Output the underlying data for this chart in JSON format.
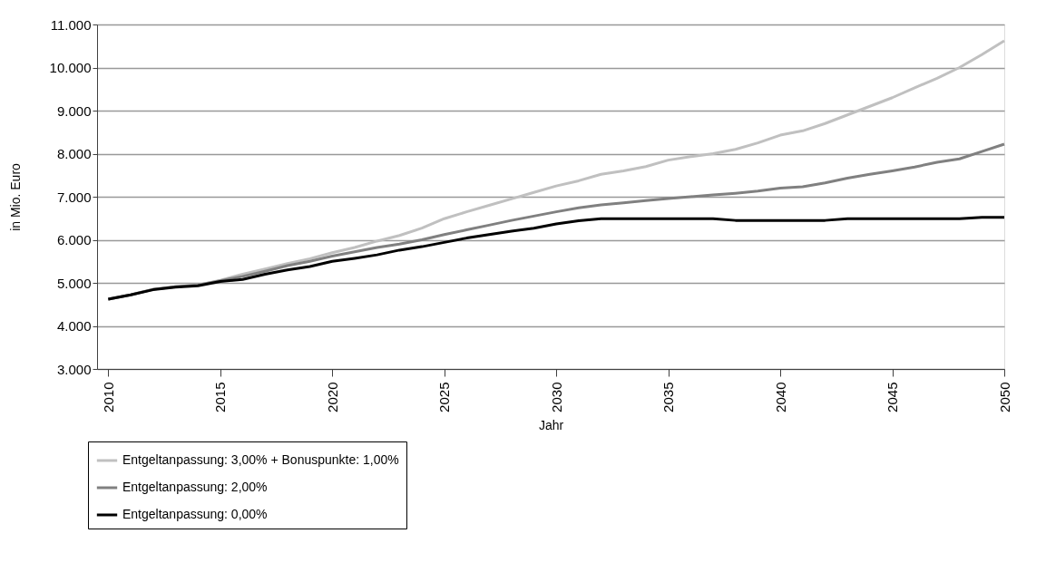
{
  "chart_data": {
    "type": "line",
    "xlabel": "Jahr",
    "ylabel": "in Mio. Euro",
    "x": [
      2010,
      2011,
      2012,
      2013,
      2014,
      2015,
      2016,
      2017,
      2018,
      2019,
      2020,
      2021,
      2022,
      2023,
      2024,
      2025,
      2026,
      2027,
      2028,
      2029,
      2030,
      2031,
      2032,
      2033,
      2034,
      2035,
      2036,
      2037,
      2038,
      2039,
      2040,
      2041,
      2042,
      2043,
      2044,
      2045,
      2046,
      2047,
      2048,
      2049,
      2050
    ],
    "series": [
      {
        "name": "Entgeltanpassung: 3,00% + Bonuspunkte: 1,00%",
        "color": "#c0c0c0",
        "values": [
          4620,
          4720,
          4850,
          4910,
          4950,
          5060,
          5200,
          5320,
          5450,
          5560,
          5700,
          5820,
          5970,
          6100,
          6270,
          6490,
          6650,
          6800,
          6950,
          7100,
          7250,
          7370,
          7520,
          7600,
          7700,
          7850,
          7930,
          8000,
          8100,
          8250,
          8430,
          8530,
          8700,
          8900,
          9100,
          9300,
          9530,
          9750,
          10000,
          10300,
          10620
        ]
      },
      {
        "name": "Entgeltanpassung: 2,00%",
        "color": "#808080",
        "values": [
          4620,
          4720,
          4850,
          4910,
          4950,
          5050,
          5150,
          5270,
          5400,
          5500,
          5620,
          5720,
          5820,
          5900,
          6000,
          6120,
          6230,
          6340,
          6450,
          6550,
          6650,
          6740,
          6810,
          6860,
          6910,
          6960,
          7000,
          7040,
          7080,
          7130,
          7200,
          7230,
          7320,
          7430,
          7520,
          7600,
          7690,
          7800,
          7880,
          8050,
          8220
        ]
      },
      {
        "name": "Entgeltanpassung: 0,00%",
        "color": "#000000",
        "values": [
          4620,
          4720,
          4840,
          4900,
          4930,
          5030,
          5080,
          5200,
          5300,
          5380,
          5500,
          5570,
          5650,
          5760,
          5840,
          5940,
          6040,
          6120,
          6200,
          6270,
          6370,
          6440,
          6490,
          6490,
          6490,
          6490,
          6490,
          6490,
          6450,
          6450,
          6450,
          6450,
          6450,
          6490,
          6490,
          6490,
          6490,
          6490,
          6490,
          6520,
          6520
        ]
      }
    ],
    "xlim": [
      2009.5,
      2050
    ],
    "xticks": [
      2010,
      2015,
      2020,
      2025,
      2030,
      2035,
      2040,
      2045,
      2050
    ],
    "ylim": [
      3000,
      11000
    ],
    "yticks": [
      {
        "value": 3000,
        "label": "3.000"
      },
      {
        "value": 4000,
        "label": "4.000"
      },
      {
        "value": 5000,
        "label": "5.000"
      },
      {
        "value": 6000,
        "label": "6.000"
      },
      {
        "value": 7000,
        "label": "7.000"
      },
      {
        "value": 8000,
        "label": "8.000"
      },
      {
        "value": 9000,
        "label": "9.000"
      },
      {
        "value": 10000,
        "label": "10.000"
      },
      {
        "value": 11000,
        "label": "11.000"
      }
    ],
    "grid": "y",
    "legend": "bottom",
    "marker": "none",
    "line_style": "solid"
  }
}
